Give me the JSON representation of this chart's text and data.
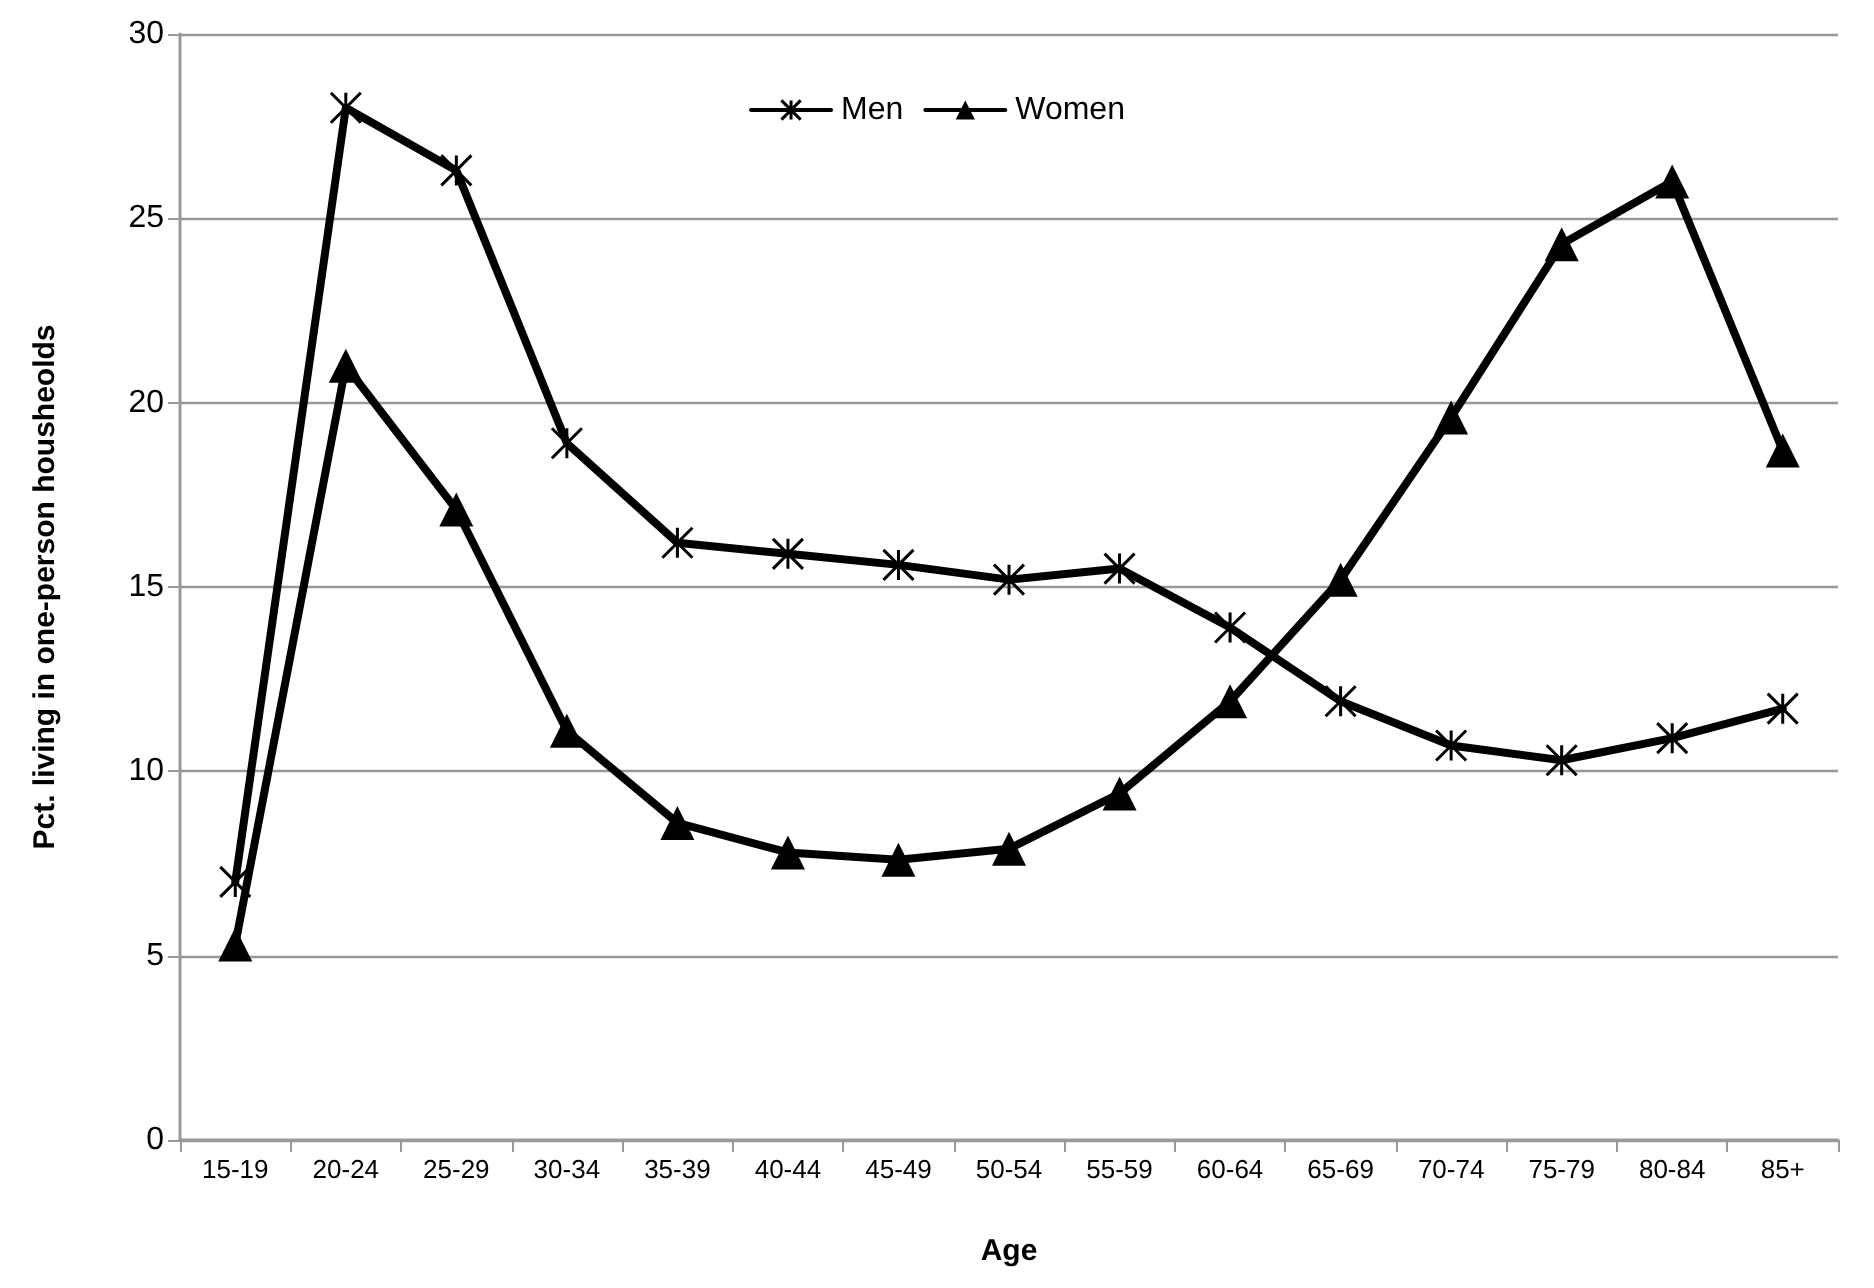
{
  "chart_data": {
    "type": "line",
    "xlabel": "Age",
    "ylabel": "Pct. living in one-person housheolds",
    "categories": [
      "15-19",
      "20-24",
      "25-29",
      "30-34",
      "35-39",
      "40-44",
      "45-49",
      "50-54",
      "55-59",
      "60-64",
      "65-69",
      "70-74",
      "75-79",
      "80-84",
      "85+"
    ],
    "series": [
      {
        "name": "Men",
        "color": "#000000",
        "marker": "cross",
        "values": [
          7.0,
          28.0,
          26.3,
          18.9,
          16.2,
          15.9,
          15.6,
          15.2,
          15.5,
          13.9,
          11.9,
          10.7,
          10.3,
          10.9,
          11.7
        ]
      },
      {
        "name": "Women",
        "color": "#000000",
        "marker": "triangle",
        "values": [
          5.3,
          21.0,
          17.1,
          11.1,
          8.6,
          7.8,
          7.6,
          7.9,
          9.4,
          11.9,
          15.2,
          19.6,
          24.3,
          26.0,
          18.7
        ]
      }
    ],
    "ylim": [
      0,
      30
    ],
    "yticks": [
      0,
      5,
      10,
      15,
      20,
      25,
      30
    ],
    "grid": "y",
    "legend": "top",
    "line_style": "solid"
  }
}
